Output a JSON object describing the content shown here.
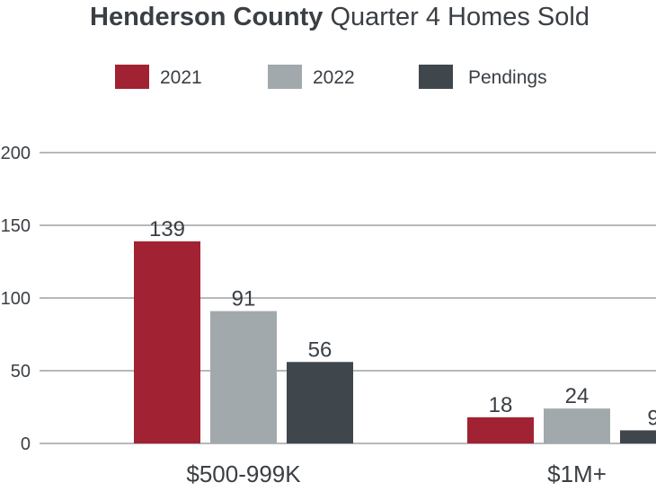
{
  "chart_data": {
    "type": "bar",
    "title_bold": "Henderson County",
    "title_rest": " Quarter 4 Homes Sold",
    "legend_position": "top",
    "categories": [
      "$500-999K",
      "$1M+"
    ],
    "series": [
      {
        "name": "2021",
        "color": "#a12232",
        "values": [
          139,
          18
        ]
      },
      {
        "name": "2022",
        "color": "#a2a9ad",
        "values": [
          91,
          24
        ]
      },
      {
        "name": "Pendings",
        "color": "#3f464c",
        "values": [
          56,
          9
        ]
      }
    ],
    "yticks": [
      "0",
      "50",
      "100",
      "150",
      "200"
    ],
    "ytick_values": [
      0,
      50,
      100,
      150,
      200
    ],
    "ylim": [
      0,
      200
    ],
    "grid": true
  }
}
